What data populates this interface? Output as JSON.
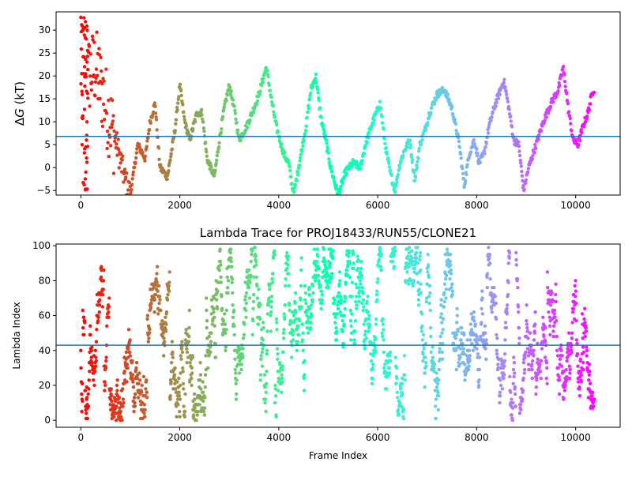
{
  "chart_data": [
    {
      "type": "scatter",
      "title": "",
      "xlabel": "",
      "ylabel_prefix": "Δ",
      "ylabel_var": "G",
      "ylabel_unit": " (kT)",
      "xlim": [
        -500,
        10900
      ],
      "ylim": [
        -6,
        34
      ],
      "xticks": [
        0,
        2000,
        4000,
        6000,
        8000,
        10000
      ],
      "yticks": [
        -5,
        0,
        5,
        10,
        15,
        20,
        25,
        30
      ],
      "hline": 6.8,
      "hline_color": "#1f77b4",
      "x_max_frame": 10380,
      "colormap": "rainbow (reversed: early frames red, late frames purple)",
      "trace_keypoints": [
        [
          0,
          30
        ],
        [
          150,
          20
        ],
        [
          300,
          22
        ],
        [
          450,
          16
        ],
        [
          600,
          10
        ],
        [
          750,
          4
        ],
        [
          900,
          -3
        ],
        [
          1000,
          -6
        ],
        [
          1150,
          5
        ],
        [
          1300,
          2
        ],
        [
          1400,
          10
        ],
        [
          1500,
          14
        ],
        [
          1600,
          0
        ],
        [
          1750,
          -2
        ],
        [
          1900,
          8
        ],
        [
          2000,
          18
        ],
        [
          2100,
          10
        ],
        [
          2200,
          6
        ],
        [
          2350,
          12
        ],
        [
          2450,
          12
        ],
        [
          2550,
          2
        ],
        [
          2700,
          -2
        ],
        [
          2800,
          6
        ],
        [
          2900,
          13
        ],
        [
          3000,
          18
        ],
        [
          3100,
          13
        ],
        [
          3200,
          6
        ],
        [
          3350,
          9
        ],
        [
          3500,
          13
        ],
        [
          3600,
          16
        ],
        [
          3750,
          22
        ],
        [
          3850,
          15
        ],
        [
          3950,
          9
        ],
        [
          4100,
          3
        ],
        [
          4200,
          1
        ],
        [
          4300,
          -6
        ],
        [
          4450,
          3
        ],
        [
          4550,
          9
        ],
        [
          4650,
          17
        ],
        [
          4750,
          20
        ],
        [
          4850,
          11
        ],
        [
          4950,
          6
        ],
        [
          5050,
          0
        ],
        [
          5200,
          -6
        ],
        [
          5350,
          -1
        ],
        [
          5500,
          1
        ],
        [
          5650,
          0
        ],
        [
          5750,
          5
        ],
        [
          5900,
          10
        ],
        [
          6050,
          14
        ],
        [
          6150,
          5
        ],
        [
          6250,
          -1
        ],
        [
          6350,
          -5
        ],
        [
          6450,
          1
        ],
        [
          6550,
          4
        ],
        [
          6650,
          6
        ],
        [
          6750,
          -3
        ],
        [
          6850,
          5
        ],
        [
          6950,
          8
        ],
        [
          7050,
          12
        ],
        [
          7200,
          16
        ],
        [
          7350,
          17
        ],
        [
          7500,
          13
        ],
        [
          7650,
          5
        ],
        [
          7750,
          -4
        ],
        [
          7850,
          3
        ],
        [
          7950,
          6
        ],
        [
          8050,
          1
        ],
        [
          8150,
          3
        ],
        [
          8250,
          9
        ],
        [
          8350,
          13
        ],
        [
          8450,
          16
        ],
        [
          8550,
          19
        ],
        [
          8650,
          13
        ],
        [
          8750,
          6
        ],
        [
          8850,
          5
        ],
        [
          8950,
          -5
        ],
        [
          9050,
          0
        ],
        [
          9200,
          5
        ],
        [
          9350,
          10
        ],
        [
          9500,
          14
        ],
        [
          9650,
          17
        ],
        [
          9750,
          22
        ],
        [
          9850,
          13
        ],
        [
          9950,
          6
        ],
        [
          10050,
          5
        ],
        [
          10150,
          9
        ],
        [
          10250,
          12
        ],
        [
          10350,
          17
        ]
      ]
    },
    {
      "type": "scatter",
      "title": "Lambda Trace for PROJ18433/RUN55/CLONE21",
      "xlabel": "Frame Index",
      "ylabel": "Lambda Index",
      "xlim": [
        -500,
        10900
      ],
      "ylim": [
        -4,
        101
      ],
      "xticks": [
        0,
        2000,
        4000,
        6000,
        8000,
        10000
      ],
      "yticks": [
        0,
        20,
        40,
        60,
        80,
        100
      ],
      "hline": 43,
      "hline_color": "#1f77b4",
      "x_max_frame": 10380,
      "value_range": [
        0,
        99
      ],
      "colormap": "rainbow (reversed: early frames red, late frames purple)"
    }
  ]
}
